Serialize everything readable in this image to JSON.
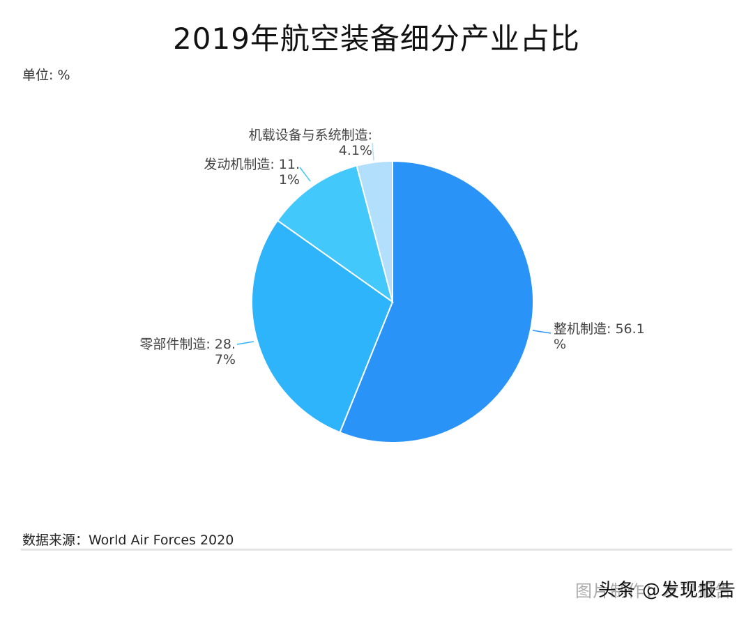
{
  "header": {
    "title": "2019年航空装备细分产业占比",
    "unit": "单位: %"
  },
  "footer": {
    "source": "数据来源：World Air Forces 2020",
    "watermark_primary": "头条 @发现报告",
    "watermark_secondary": "图片制作：发现报告"
  },
  "chart_data": {
    "type": "pie",
    "title": "2019年航空装备细分产业占比",
    "unit": "%",
    "start_angle": "12 o'clock, clockwise",
    "categories": [
      "整机制造",
      "零部件制造",
      "发动机制造",
      "机载设备与系统制造"
    ],
    "values": [
      56.1,
      28.7,
      11.1,
      4.1
    ],
    "colors": [
      "#2a93f8",
      "#2eb4fa",
      "#43c8fc",
      "#b2dffc"
    ],
    "labels": [
      {
        "line1": "整机制造: 56.1",
        "line2": "%"
      },
      {
        "line1": "零部件制造: 28.",
        "line2": "7%"
      },
      {
        "line1": "发动机制造: 11.",
        "line2": "1%"
      },
      {
        "line1": "机载设备与系统制造:",
        "line2": "4.1%"
      }
    ],
    "source": "World Air Forces 2020"
  }
}
